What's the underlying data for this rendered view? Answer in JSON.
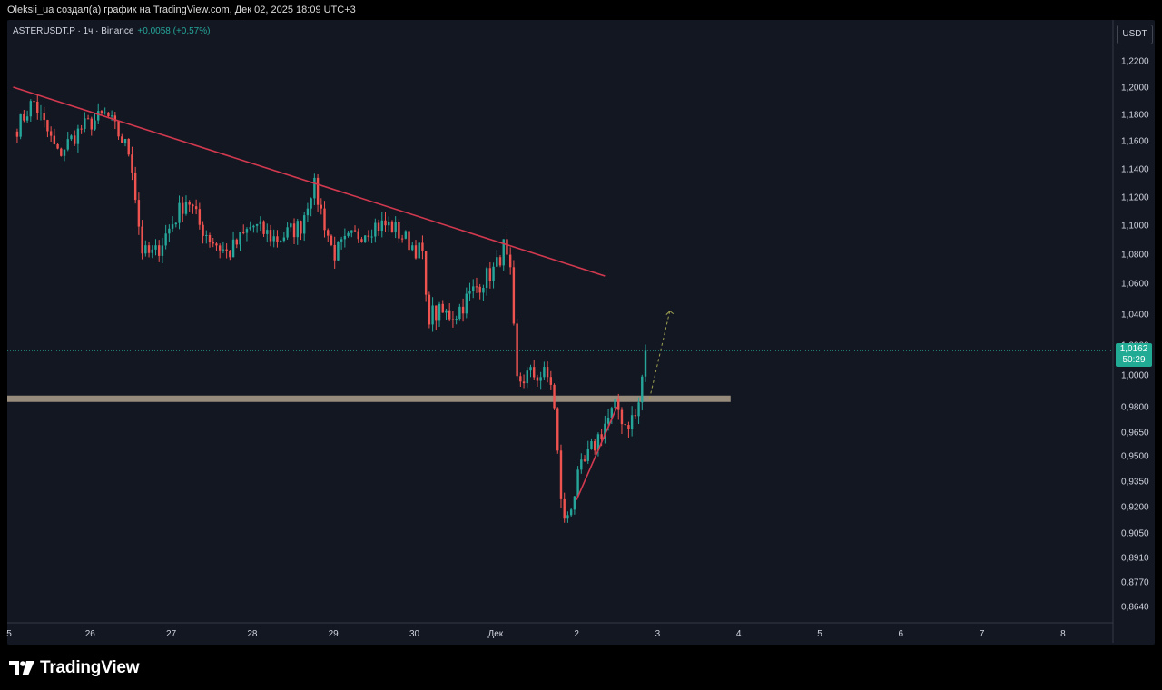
{
  "header": {
    "attribution": "Oleksii_ua создал(а) график на TradingView.com, Дек 02, 2025 18:09 UTC+3"
  },
  "symbol": {
    "name": "ASTERUSDT.P · 1ч · Binance",
    "change": "+0,0058 (+0,57%)"
  },
  "price_scale": {
    "currency_label": "USDT",
    "last_price": "1,0162",
    "countdown": "50:29"
  },
  "brand": {
    "logo_text": "TradingView"
  },
  "colors": {
    "up": "#26a69a",
    "down": "#ef5350",
    "trendline": "#d2394f",
    "support_zone": "#9e9181",
    "projection": "#9ea050",
    "background": "#131722"
  },
  "chart_data": {
    "type": "candlestick",
    "interval": "1h",
    "y_ticks": [
      1.22,
      1.2,
      1.18,
      1.16,
      1.14,
      1.12,
      1.1,
      1.08,
      1.06,
      1.04,
      1.02,
      1.0,
      0.98,
      0.965,
      0.95,
      0.935,
      0.92,
      0.905,
      0.891,
      0.877,
      0.864
    ],
    "y_tick_labels": [
      "1,2200",
      "1,2000",
      "1,1800",
      "1,1600",
      "1,1400",
      "1,1200",
      "1,1000",
      "1,0800",
      "1,0600",
      "1,0400",
      "1,0200",
      "1,0000",
      "0,9800",
      "0,9650",
      "0,9500",
      "0,9350",
      "0,9200",
      "0,9050",
      "0,8910",
      "0,8770",
      "0,8640"
    ],
    "x_labels": [
      {
        "label": "5",
        "day": 0
      },
      {
        "label": "26",
        "day": 1
      },
      {
        "label": "27",
        "day": 2
      },
      {
        "label": "28",
        "day": 3
      },
      {
        "label": "29",
        "day": 4
      },
      {
        "label": "30",
        "day": 5
      },
      {
        "label": "Дек",
        "day": 6
      },
      {
        "label": "2",
        "day": 7
      },
      {
        "label": "3",
        "day": 8
      },
      {
        "label": "4",
        "day": 9
      },
      {
        "label": "5",
        "day": 10
      },
      {
        "label": "6",
        "day": 11
      },
      {
        "label": "7",
        "day": 12
      },
      {
        "label": "8",
        "day": 13
      }
    ],
    "last_price": 1.0162,
    "key_points": [
      {
        "day": 0.1,
        "close": 1.17
      },
      {
        "day": 0.3,
        "close": 1.19
      },
      {
        "day": 0.6,
        "close": 1.15
      },
      {
        "day": 0.9,
        "close": 1.17
      },
      {
        "day": 1.2,
        "close": 1.18
      },
      {
        "day": 1.4,
        "close": 1.16
      },
      {
        "day": 1.5,
        "close": 1.15
      },
      {
        "day": 1.6,
        "close": 1.1
      },
      {
        "day": 1.65,
        "close": 1.08
      },
      {
        "day": 1.8,
        "close": 1.08
      },
      {
        "day": 2.0,
        "close": 1.1
      },
      {
        "day": 2.2,
        "close": 1.12
      },
      {
        "day": 2.35,
        "close": 1.1
      },
      {
        "day": 2.5,
        "close": 1.09
      },
      {
        "day": 2.7,
        "close": 1.08
      },
      {
        "day": 3.0,
        "close": 1.1
      },
      {
        "day": 3.3,
        "close": 1.09
      },
      {
        "day": 3.6,
        "close": 1.1
      },
      {
        "day": 3.75,
        "close": 1.13
      },
      {
        "day": 3.9,
        "close": 1.1
      },
      {
        "day": 4.0,
        "close": 1.08
      },
      {
        "day": 4.2,
        "close": 1.09
      },
      {
        "day": 4.5,
        "close": 1.1
      },
      {
        "day": 4.7,
        "close": 1.1
      },
      {
        "day": 4.9,
        "close": 1.09
      },
      {
        "day": 5.1,
        "close": 1.08
      },
      {
        "day": 5.15,
        "close": 1.04
      },
      {
        "day": 5.3,
        "close": 1.04
      },
      {
        "day": 5.5,
        "close": 1.04
      },
      {
        "day": 5.8,
        "close": 1.06
      },
      {
        "day": 6.0,
        "close": 1.07
      },
      {
        "day": 6.1,
        "close": 1.085
      },
      {
        "day": 6.2,
        "close": 1.06
      },
      {
        "day": 6.25,
        "close": 0.995
      },
      {
        "day": 6.4,
        "close": 1.0
      },
      {
        "day": 6.6,
        "close": 1.0
      },
      {
        "day": 6.7,
        "close": 0.995
      },
      {
        "day": 6.75,
        "close": 0.96
      },
      {
        "day": 6.8,
        "close": 0.93
      },
      {
        "day": 6.85,
        "close": 0.91
      },
      {
        "day": 6.95,
        "close": 0.925
      },
      {
        "day": 7.05,
        "close": 0.94
      },
      {
        "day": 7.2,
        "close": 0.955
      },
      {
        "day": 7.35,
        "close": 0.97
      },
      {
        "day": 7.5,
        "close": 0.98
      },
      {
        "day": 7.6,
        "close": 0.97
      },
      {
        "day": 7.75,
        "close": 0.975
      },
      {
        "day": 7.85,
        "close": 1.016
      }
    ],
    "annotations": {
      "down_trendline": {
        "start": {
          "day": 0.05,
          "price": 1.2
        },
        "end": {
          "day": 7.35,
          "price": 1.065
        }
      },
      "support_zone": {
        "price": 0.985,
        "day_end": 8.9
      },
      "rising_line": {
        "start": {
          "day": 7.0,
          "price": 0.924
        },
        "end": {
          "day": 7.5,
          "price": 0.98
        }
      },
      "projection": {
        "start": {
          "day": 7.9,
          "price": 0.985
        },
        "end": {
          "day": 8.15,
          "price": 1.042
        }
      }
    }
  }
}
